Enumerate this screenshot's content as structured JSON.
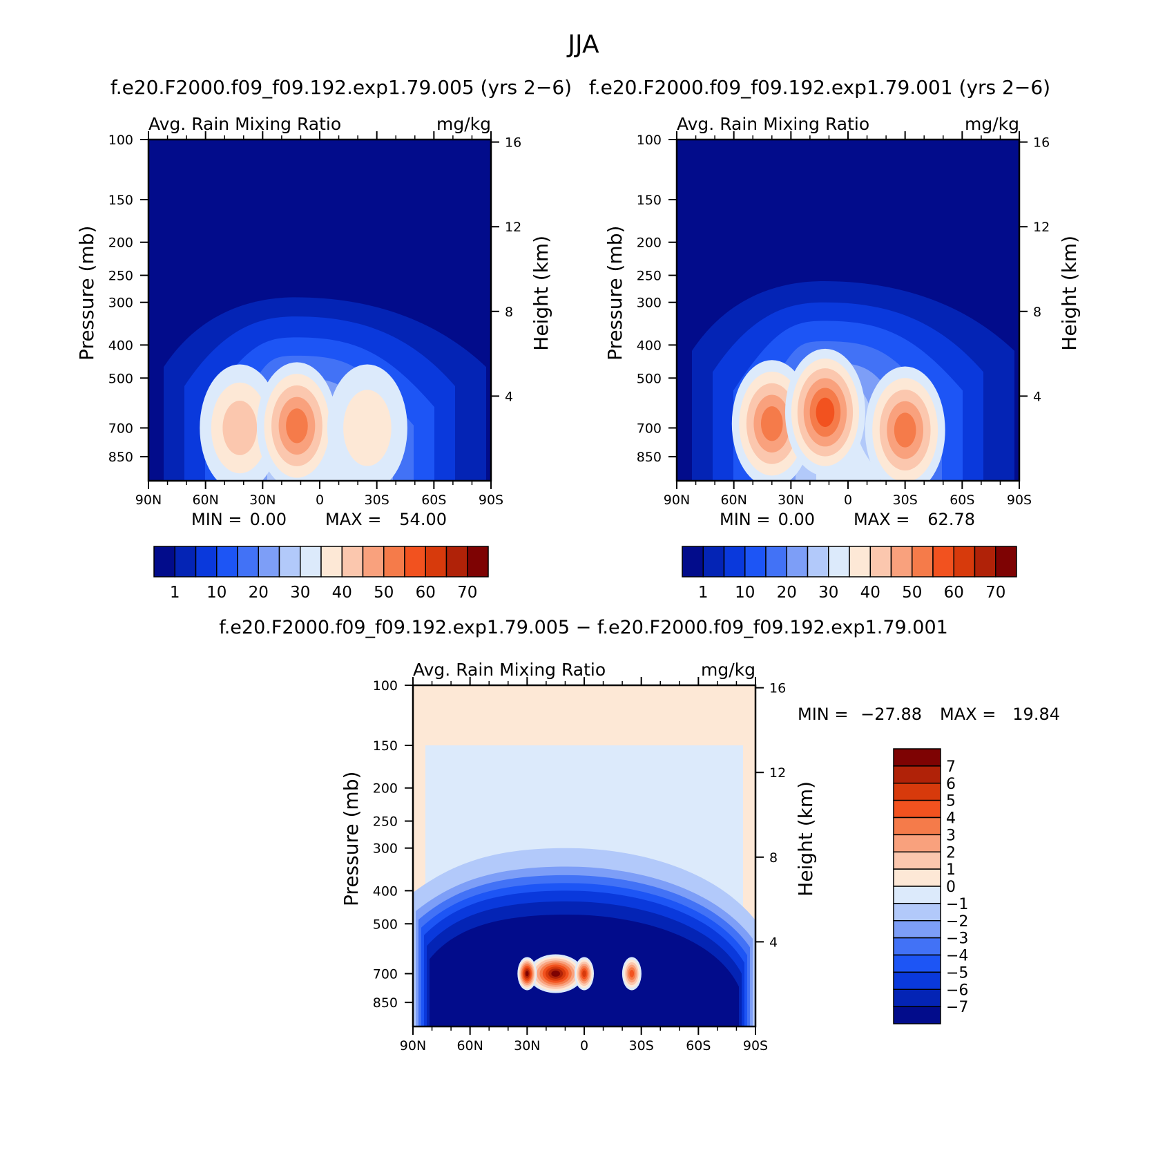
{
  "figure": {
    "title": "JJA",
    "diff_title": "f.e20.F2000.f09_f09.192.exp1.79.005 − f.e20.F2000.f09_f09.192.exp1.79.001"
  },
  "chart_data": [
    {
      "type": "heatmap",
      "title": "f.e20.F2000.f09_f09.192.exp1.79.005 (yrs 2−6)",
      "subtitle_left": "Avg. Rain Mixing Ratio",
      "subtitle_right": "mg/kg",
      "ylabel": "Pressure (mb)",
      "ylabel_right": "Height (km)",
      "x_ticks": [
        "90N",
        "60N",
        "30N",
        "0",
        "30S",
        "60S",
        "90S"
      ],
      "y_ticks": [
        100,
        150,
        200,
        250,
        300,
        400,
        500,
        700,
        850
      ],
      "y_right_ticks": [
        16,
        12,
        8,
        4
      ],
      "y_scale": "log",
      "ylim": [
        100,
        1000
      ],
      "min_label": "MIN =",
      "min_value": "0.00",
      "max_label": "MAX =",
      "max_value": "54.00",
      "colorbar": {
        "orientation": "horizontal",
        "labels": [
          "1",
          "10",
          "20",
          "30",
          "40",
          "50",
          "60",
          "70"
        ],
        "colors": [
          "#020c8b",
          "#0424b5",
          "#0a39dc",
          "#1d55f5",
          "#4272f6",
          "#7d9ef7",
          "#b2c9fa",
          "#dceafb",
          "#fde8d6",
          "#fbc7ae",
          "#f9a17d",
          "#f57b4a",
          "#f2521f",
          "#d73a0c",
          "#b02208",
          "#7e0303"
        ]
      },
      "features": [
        {
          "lat": 42,
          "p": 700,
          "value": 45
        },
        {
          "lat": 12,
          "p": 690,
          "value": 54
        },
        {
          "lat": -25,
          "p": 700,
          "value": 38
        }
      ]
    },
    {
      "type": "heatmap",
      "title": "f.e20.F2000.f09_f09.192.exp1.79.001 (yrs 2−6)",
      "subtitle_left": "Avg. Rain Mixing Ratio",
      "subtitle_right": "mg/kg",
      "ylabel": "Pressure (mb)",
      "ylabel_right": "Height (km)",
      "x_ticks": [
        "90N",
        "60N",
        "30N",
        "0",
        "30S",
        "60S",
        "90S"
      ],
      "y_ticks": [
        100,
        150,
        200,
        250,
        300,
        400,
        500,
        700,
        850
      ],
      "y_right_ticks": [
        16,
        12,
        8,
        4
      ],
      "y_scale": "log",
      "ylim": [
        100,
        1000
      ],
      "min_label": "MIN =",
      "min_value": "0.00",
      "max_label": "MAX =",
      "max_value": "62.78",
      "colorbar": {
        "orientation": "horizontal",
        "labels": [
          "1",
          "10",
          "20",
          "30",
          "40",
          "50",
          "60",
          "70"
        ],
        "colors": [
          "#020c8b",
          "#0424b5",
          "#0a39dc",
          "#1d55f5",
          "#4272f6",
          "#7d9ef7",
          "#b2c9fa",
          "#dceafb",
          "#fde8d6",
          "#fbc7ae",
          "#f9a17d",
          "#f57b4a",
          "#f2521f",
          "#d73a0c",
          "#b02208",
          "#7e0303"
        ]
      },
      "features": [
        {
          "lat": 40,
          "p": 680,
          "value": 55
        },
        {
          "lat": 12,
          "p": 630,
          "value": 62
        },
        {
          "lat": -30,
          "p": 710,
          "value": 55
        }
      ]
    },
    {
      "type": "heatmap",
      "title": "",
      "subtitle_left": "Avg. Rain Mixing Ratio",
      "subtitle_right": "mg/kg",
      "ylabel": "Pressure (mb)",
      "ylabel_right": "Height (km)",
      "x_ticks": [
        "90N",
        "60N",
        "30N",
        "0",
        "30S",
        "60S",
        "90S"
      ],
      "y_ticks": [
        100,
        150,
        200,
        250,
        300,
        400,
        500,
        700,
        850
      ],
      "y_right_ticks": [
        16,
        12,
        8,
        4
      ],
      "y_scale": "log",
      "ylim": [
        100,
        1000
      ],
      "min_label": "MIN =",
      "min_value": "−27.88",
      "max_label": "MAX =",
      "max_value": "19.84",
      "colorbar": {
        "orientation": "vertical",
        "labels": [
          "7",
          "6",
          "5",
          "4",
          "3",
          "2",
          "1",
          "0",
          "−1",
          "−2",
          "−3",
          "−4",
          "−5",
          "−6",
          "−7"
        ],
        "colors": [
          "#7e0303",
          "#b02208",
          "#d73a0c",
          "#f2521f",
          "#f57b4a",
          "#f9a17d",
          "#fbc7ae",
          "#fde8d6",
          "#dceafb",
          "#b2c9fa",
          "#7d9ef7",
          "#4272f6",
          "#1d55f5",
          "#0a39dc",
          "#0424b5",
          "#020c8b"
        ]
      },
      "features": [
        {
          "lat": 15,
          "p": 700,
          "value": 19.84
        },
        {
          "lat": 30,
          "p": 700,
          "value": 7
        },
        {
          "lat": 0,
          "p": 700,
          "value": 5
        },
        {
          "lat": -25,
          "p": 700,
          "value": 4
        }
      ]
    }
  ]
}
